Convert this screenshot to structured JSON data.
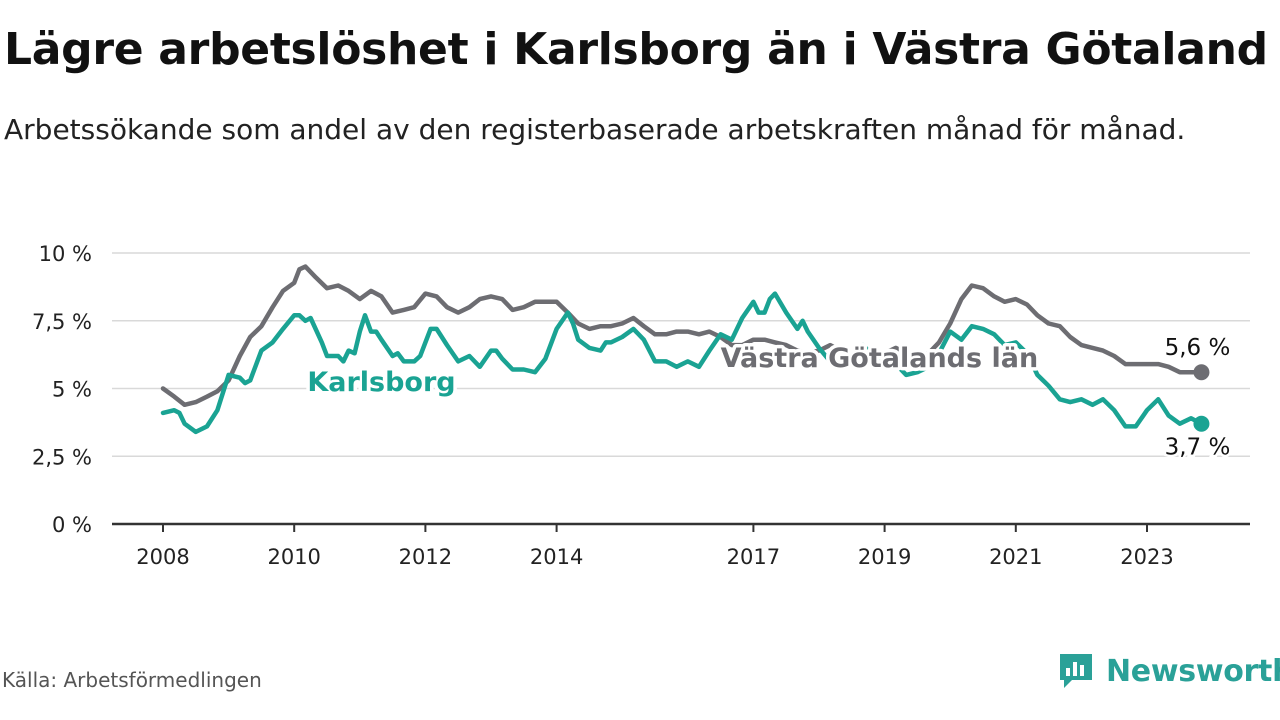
{
  "title": "Lägre arbetslöshet i Karlsborg än i Västra Götaland",
  "subtitle": "Arbetssökande som andel av den registerbaserade arbetskraften månad för månad.",
  "source": "Källa: Arbetsförmedlingen",
  "brand": "Newsworthy",
  "colors": {
    "karlsborg": "#1aa393",
    "vg": "#6d6d72",
    "grid": "#d9d9d9",
    "axis": "#333333",
    "brand": "#2aa198"
  },
  "chart_data": {
    "type": "line",
    "title": "Lägre arbetslöshet i Karlsborg än i Västra Götaland",
    "xlabel": "",
    "ylabel": "",
    "xlim": [
      2007.5,
      2024.6
    ],
    "ylim": [
      0,
      10
    ],
    "y_ticks": [
      0,
      2.5,
      5,
      7.5,
      10
    ],
    "y_tick_labels": [
      "0 %",
      "2,5 %",
      "5 %",
      "7,5 %",
      "10 %"
    ],
    "x_ticks": [
      2008,
      2010,
      2012,
      2014,
      2017,
      2019,
      2021,
      2023
    ],
    "x_tick_labels": [
      "2008",
      "2010",
      "2012",
      "2014",
      "2017",
      "2019",
      "2021",
      "2023"
    ],
    "grid": true,
    "series": [
      {
        "name": "Västra Götalands län",
        "label": "Västra Götalands län",
        "color": "#6d6d72",
        "end_label": "5,6 %",
        "points": [
          [
            2008.0,
            5.0
          ],
          [
            2008.17,
            4.7
          ],
          [
            2008.33,
            4.4
          ],
          [
            2008.5,
            4.5
          ],
          [
            2008.67,
            4.7
          ],
          [
            2008.83,
            4.9
          ],
          [
            2009.0,
            5.3
          ],
          [
            2009.17,
            6.2
          ],
          [
            2009.33,
            6.9
          ],
          [
            2009.5,
            7.3
          ],
          [
            2009.67,
            8.0
          ],
          [
            2009.83,
            8.6
          ],
          [
            2010.0,
            8.9
          ],
          [
            2010.08,
            9.4
          ],
          [
            2010.17,
            9.5
          ],
          [
            2010.33,
            9.1
          ],
          [
            2010.5,
            8.7
          ],
          [
            2010.67,
            8.8
          ],
          [
            2010.83,
            8.6
          ],
          [
            2011.0,
            8.3
          ],
          [
            2011.17,
            8.6
          ],
          [
            2011.33,
            8.4
          ],
          [
            2011.5,
            7.8
          ],
          [
            2011.67,
            7.9
          ],
          [
            2011.83,
            8.0
          ],
          [
            2012.0,
            8.5
          ],
          [
            2012.17,
            8.4
          ],
          [
            2012.33,
            8.0
          ],
          [
            2012.5,
            7.8
          ],
          [
            2012.67,
            8.0
          ],
          [
            2012.83,
            8.3
          ],
          [
            2013.0,
            8.4
          ],
          [
            2013.17,
            8.3
          ],
          [
            2013.33,
            7.9
          ],
          [
            2013.5,
            8.0
          ],
          [
            2013.67,
            8.2
          ],
          [
            2013.83,
            8.2
          ],
          [
            2014.0,
            8.2
          ],
          [
            2014.17,
            7.8
          ],
          [
            2014.33,
            7.4
          ],
          [
            2014.5,
            7.2
          ],
          [
            2014.67,
            7.3
          ],
          [
            2014.83,
            7.3
          ],
          [
            2015.0,
            7.4
          ],
          [
            2015.17,
            7.6
          ],
          [
            2015.33,
            7.3
          ],
          [
            2015.5,
            7.0
          ],
          [
            2015.67,
            7.0
          ],
          [
            2015.83,
            7.1
          ],
          [
            2016.0,
            7.1
          ],
          [
            2016.17,
            7.0
          ],
          [
            2016.33,
            7.1
          ],
          [
            2016.5,
            6.9
          ],
          [
            2016.67,
            6.6
          ],
          [
            2016.83,
            6.6
          ],
          [
            2017.0,
            6.8
          ],
          [
            2017.17,
            6.8
          ],
          [
            2017.33,
            6.7
          ],
          [
            2017.5,
            6.6
          ],
          [
            2017.67,
            6.4
          ],
          [
            2017.83,
            6.3
          ],
          [
            2018.0,
            6.4
          ],
          [
            2018.17,
            6.6
          ],
          [
            2018.33,
            6.4
          ],
          [
            2018.5,
            6.2
          ],
          [
            2018.67,
            6.1
          ],
          [
            2018.83,
            6.2
          ],
          [
            2019.0,
            6.3
          ],
          [
            2019.17,
            6.5
          ],
          [
            2019.33,
            6.3
          ],
          [
            2019.5,
            6.2
          ],
          [
            2019.67,
            6.3
          ],
          [
            2019.83,
            6.7
          ],
          [
            2020.0,
            7.4
          ],
          [
            2020.17,
            8.3
          ],
          [
            2020.33,
            8.8
          ],
          [
            2020.5,
            8.7
          ],
          [
            2020.67,
            8.4
          ],
          [
            2020.83,
            8.2
          ],
          [
            2021.0,
            8.3
          ],
          [
            2021.17,
            8.1
          ],
          [
            2021.33,
            7.7
          ],
          [
            2021.5,
            7.4
          ],
          [
            2021.67,
            7.3
          ],
          [
            2021.83,
            6.9
          ],
          [
            2022.0,
            6.6
          ],
          [
            2022.17,
            6.5
          ],
          [
            2022.33,
            6.4
          ],
          [
            2022.5,
            6.2
          ],
          [
            2022.67,
            5.9
          ],
          [
            2022.83,
            5.9
          ],
          [
            2023.0,
            5.9
          ],
          [
            2023.17,
            5.9
          ],
          [
            2023.33,
            5.8
          ],
          [
            2023.5,
            5.6
          ],
          [
            2023.67,
            5.6
          ],
          [
            2023.83,
            5.6
          ]
        ]
      },
      {
        "name": "Karlsborg",
        "label": "Karlsborg",
        "color": "#1aa393",
        "end_label": "3,7 %",
        "points": [
          [
            2008.0,
            4.1
          ],
          [
            2008.17,
            4.2
          ],
          [
            2008.25,
            4.1
          ],
          [
            2008.33,
            3.7
          ],
          [
            2008.5,
            3.4
          ],
          [
            2008.67,
            3.6
          ],
          [
            2008.83,
            4.2
          ],
          [
            2009.0,
            5.5
          ],
          [
            2009.17,
            5.4
          ],
          [
            2009.25,
            5.2
          ],
          [
            2009.33,
            5.3
          ],
          [
            2009.5,
            6.4
          ],
          [
            2009.67,
            6.7
          ],
          [
            2009.83,
            7.2
          ],
          [
            2010.0,
            7.7
          ],
          [
            2010.08,
            7.7
          ],
          [
            2010.17,
            7.5
          ],
          [
            2010.25,
            7.6
          ],
          [
            2010.42,
            6.7
          ],
          [
            2010.5,
            6.2
          ],
          [
            2010.67,
            6.2
          ],
          [
            2010.75,
            6.0
          ],
          [
            2010.83,
            6.4
          ],
          [
            2010.92,
            6.3
          ],
          [
            2011.0,
            7.1
          ],
          [
            2011.08,
            7.7
          ],
          [
            2011.17,
            7.1
          ],
          [
            2011.25,
            7.1
          ],
          [
            2011.33,
            6.8
          ],
          [
            2011.5,
            6.2
          ],
          [
            2011.58,
            6.3
          ],
          [
            2011.67,
            6.0
          ],
          [
            2011.75,
            6.0
          ],
          [
            2011.83,
            6.0
          ],
          [
            2011.92,
            6.2
          ],
          [
            2012.0,
            6.7
          ],
          [
            2012.08,
            7.2
          ],
          [
            2012.17,
            7.2
          ],
          [
            2012.33,
            6.6
          ],
          [
            2012.5,
            6.0
          ],
          [
            2012.67,
            6.2
          ],
          [
            2012.83,
            5.8
          ],
          [
            2013.0,
            6.4
          ],
          [
            2013.08,
            6.4
          ],
          [
            2013.17,
            6.1
          ],
          [
            2013.33,
            5.7
          ],
          [
            2013.5,
            5.7
          ],
          [
            2013.67,
            5.6
          ],
          [
            2013.83,
            6.1
          ],
          [
            2014.0,
            7.2
          ],
          [
            2014.17,
            7.8
          ],
          [
            2014.25,
            7.4
          ],
          [
            2014.33,
            6.8
          ],
          [
            2014.5,
            6.5
          ],
          [
            2014.67,
            6.4
          ],
          [
            2014.75,
            6.7
          ],
          [
            2014.83,
            6.7
          ],
          [
            2015.0,
            6.9
          ],
          [
            2015.17,
            7.2
          ],
          [
            2015.33,
            6.8
          ],
          [
            2015.5,
            6.0
          ],
          [
            2015.67,
            6.0
          ],
          [
            2015.83,
            5.8
          ],
          [
            2016.0,
            6.0
          ],
          [
            2016.17,
            5.8
          ],
          [
            2016.33,
            6.4
          ],
          [
            2016.5,
            7.0
          ],
          [
            2016.67,
            6.8
          ],
          [
            2016.83,
            7.6
          ],
          [
            2017.0,
            8.2
          ],
          [
            2017.08,
            7.8
          ],
          [
            2017.17,
            7.8
          ],
          [
            2017.25,
            8.3
          ],
          [
            2017.33,
            8.5
          ],
          [
            2017.5,
            7.8
          ],
          [
            2017.67,
            7.2
          ],
          [
            2017.75,
            7.5
          ],
          [
            2017.83,
            7.1
          ],
          [
            2018.0,
            6.5
          ],
          [
            2018.17,
            6.0
          ],
          [
            2018.33,
            5.8
          ],
          [
            2018.5,
            6.2
          ],
          [
            2018.67,
            6.6
          ],
          [
            2018.83,
            6.2
          ],
          [
            2019.0,
            5.9
          ],
          [
            2019.17,
            5.9
          ],
          [
            2019.33,
            5.5
          ],
          [
            2019.5,
            5.6
          ],
          [
            2019.67,
            5.8
          ],
          [
            2019.83,
            6.3
          ],
          [
            2020.0,
            7.1
          ],
          [
            2020.17,
            6.8
          ],
          [
            2020.33,
            7.3
          ],
          [
            2020.5,
            7.2
          ],
          [
            2020.67,
            7.0
          ],
          [
            2020.83,
            6.6
          ],
          [
            2021.0,
            6.7
          ],
          [
            2021.17,
            6.3
          ],
          [
            2021.33,
            5.5
          ],
          [
            2021.5,
            5.1
          ],
          [
            2021.67,
            4.6
          ],
          [
            2021.83,
            4.5
          ],
          [
            2022.0,
            4.6
          ],
          [
            2022.17,
            4.4
          ],
          [
            2022.33,
            4.6
          ],
          [
            2022.5,
            4.2
          ],
          [
            2022.67,
            3.6
          ],
          [
            2022.83,
            3.6
          ],
          [
            2023.0,
            4.2
          ],
          [
            2023.17,
            4.6
          ],
          [
            2023.33,
            4.0
          ],
          [
            2023.5,
            3.7
          ],
          [
            2023.67,
            3.9
          ],
          [
            2023.83,
            3.7
          ]
        ]
      }
    ]
  }
}
